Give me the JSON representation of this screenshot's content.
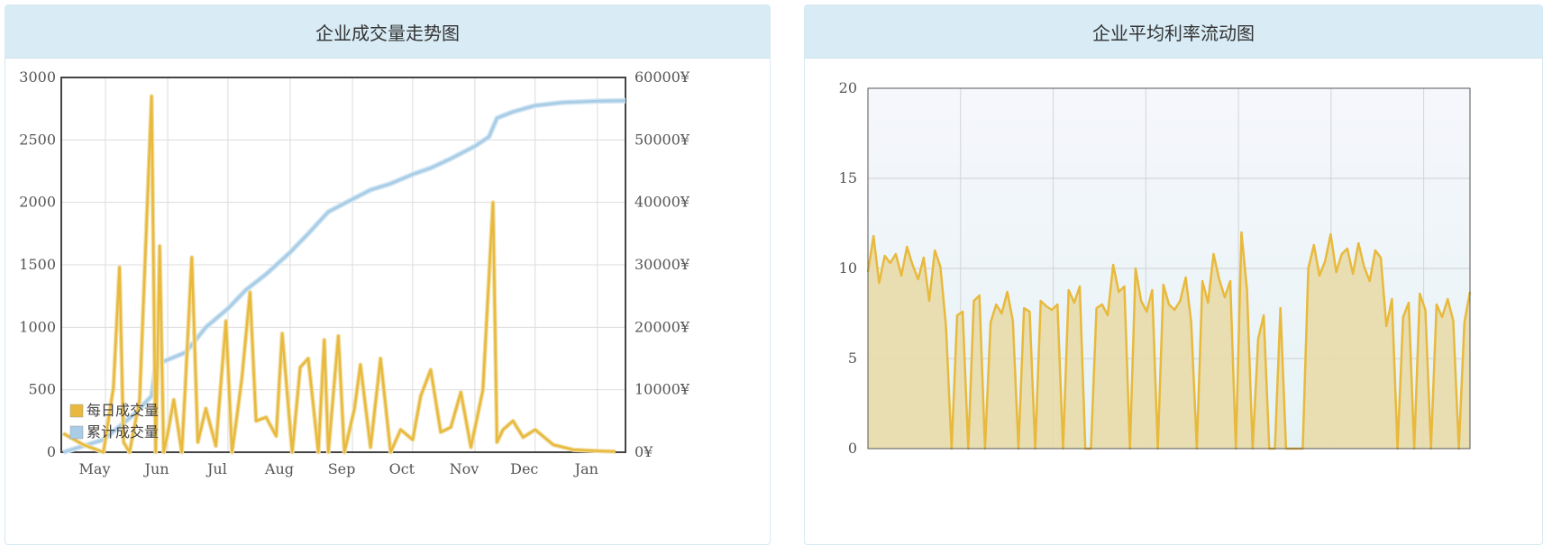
{
  "left_panel": {
    "title": "企业成交量走势图"
  },
  "right_panel": {
    "title": "企业平均利率流动图"
  },
  "colors": {
    "daily": "#e8b93c",
    "cumulative": "#a9cde6",
    "rate_fill": "#e8dcaa",
    "header_bg": "#d9ecf6"
  },
  "chart_data": [
    {
      "type": "line",
      "title": "企业成交量走势图",
      "x_ticks": [
        "May",
        "Jun",
        "Jul",
        "Aug",
        "Sep",
        "Oct",
        "Nov",
        "Dec",
        "Jan"
      ],
      "y_left_ticks": [
        "0",
        "500",
        "1000",
        "1500",
        "2000",
        "2500",
        "3000"
      ],
      "y_right_ticks": [
        "0¥",
        "10000¥",
        "20000¥",
        "30000¥",
        "40000¥",
        "50000¥",
        "60000¥"
      ],
      "ylim_left": [
        0,
        3000
      ],
      "ylim_right": [
        0,
        60000
      ],
      "grid": true,
      "legend_position": "bottom-left",
      "series": [
        {
          "name": "每日成交量",
          "axis": "left",
          "x": [
            "Apr 10",
            "Apr 20",
            "Apr 30",
            "May 5",
            "May 8",
            "May 10",
            "May 13",
            "May 18",
            "May 24",
            "May 26",
            "May 28",
            "May 30",
            "Jun 1",
            "Jun 4",
            "Jun 8",
            "Jun 10",
            "Jun 13",
            "Jun 16",
            "Jun 20",
            "Jun 25",
            "Jun 30",
            "Jul 3",
            "Jul 5",
            "Jul 8",
            "Jul 12",
            "Jul 15",
            "Jul 20",
            "Jul 25",
            "Jul 28",
            "Aug 2",
            "Aug 6",
            "Aug 10",
            "Aug 15",
            "Aug 18",
            "Aug 20",
            "Aug 25",
            "Aug 28",
            "Sep 2",
            "Sep 5",
            "Sep 10",
            "Sep 15",
            "Sep 20",
            "Sep 25",
            "Oct 1",
            "Oct 5",
            "Oct 10",
            "Oct 15",
            "Oct 20",
            "Oct 25",
            "Oct 30",
            "Nov 5",
            "Nov 10",
            "Nov 12",
            "Nov 15",
            "Nov 20",
            "Nov 25",
            "Dec 1",
            "Dec 10",
            "Dec 20",
            "Jan 1",
            "Jan 10"
          ],
          "values": [
            150,
            60,
            0,
            520,
            1480,
            80,
            0,
            420,
            2850,
            0,
            1650,
            0,
            150,
            420,
            0,
            600,
            1560,
            80,
            350,
            50,
            1050,
            0,
            230,
            600,
            1280,
            250,
            280,
            130,
            950,
            0,
            680,
            750,
            0,
            900,
            0,
            930,
            0,
            350,
            700,
            40,
            750,
            0,
            180,
            100,
            450,
            660,
            160,
            200,
            480,
            40,
            500,
            2000,
            80,
            180,
            250,
            120,
            180,
            60,
            20,
            10,
            5
          ]
        },
        {
          "name": "累计成交量",
          "axis": "right",
          "x": [
            "Apr 10",
            "Apr 30",
            "May 15",
            "May 24",
            "May 26",
            "Jun 10",
            "Jun 20",
            "Jul 1",
            "Jul 10",
            "Jul 20",
            "Aug 1",
            "Aug 10",
            "Aug 20",
            "Sep 1",
            "Sep 10",
            "Sep 20",
            "Oct 1",
            "Oct 10",
            "Oct 20",
            "Nov 1",
            "Nov 8",
            "Nov 12",
            "Nov 20",
            "Dec 1",
            "Dec 15",
            "Jan 1",
            "Jan 15"
          ],
          "values": [
            0,
            2000,
            6000,
            9000,
            14000,
            16000,
            20000,
            23000,
            26000,
            28500,
            32000,
            35000,
            38500,
            40500,
            42000,
            43000,
            44500,
            45500,
            47000,
            49000,
            50500,
            53500,
            54500,
            55500,
            56000,
            56200,
            56300
          ]
        }
      ]
    },
    {
      "type": "area",
      "title": "企业平均利率流动图",
      "y_ticks": [
        "0",
        "5",
        "10",
        "15",
        "20"
      ],
      "ylim": [
        0,
        20
      ],
      "grid": true,
      "series": [
        {
          "values": [
            9.8,
            11.8,
            9.2,
            10.7,
            10.3,
            10.8,
            9.6,
            11.2,
            10.2,
            9.4,
            10.6,
            8.2,
            11.0,
            10.1,
            6.8,
            0,
            7.4,
            7.6,
            0,
            8.2,
            8.5,
            0,
            7.0,
            8.0,
            7.5,
            8.7,
            7.1,
            0,
            7.8,
            7.6,
            0,
            8.2,
            7.9,
            7.7,
            8.0,
            0,
            8.8,
            8.1,
            9.0,
            0,
            0,
            7.8,
            8.0,
            7.4,
            10.2,
            8.7,
            9.0,
            0,
            10.0,
            8.2,
            7.6,
            8.8,
            0,
            9.1,
            8.0,
            7.7,
            8.2,
            9.5,
            7.0,
            0,
            9.3,
            8.1,
            10.8,
            9.4,
            8.4,
            9.3,
            0,
            12.0,
            8.8,
            0,
            6.1,
            7.4,
            0,
            0,
            7.8,
            0,
            0,
            0,
            0,
            10.0,
            11.3,
            9.6,
            10.4,
            11.9,
            9.8,
            10.8,
            11.1,
            9.7,
            11.4,
            10.1,
            9.3,
            11.0,
            10.6,
            6.8,
            8.3,
            0,
            7.3,
            8.1,
            0,
            8.6,
            7.7,
            0,
            8.0,
            7.3,
            8.3,
            7.1,
            0,
            7.0,
            8.7
          ]
        }
      ]
    }
  ]
}
